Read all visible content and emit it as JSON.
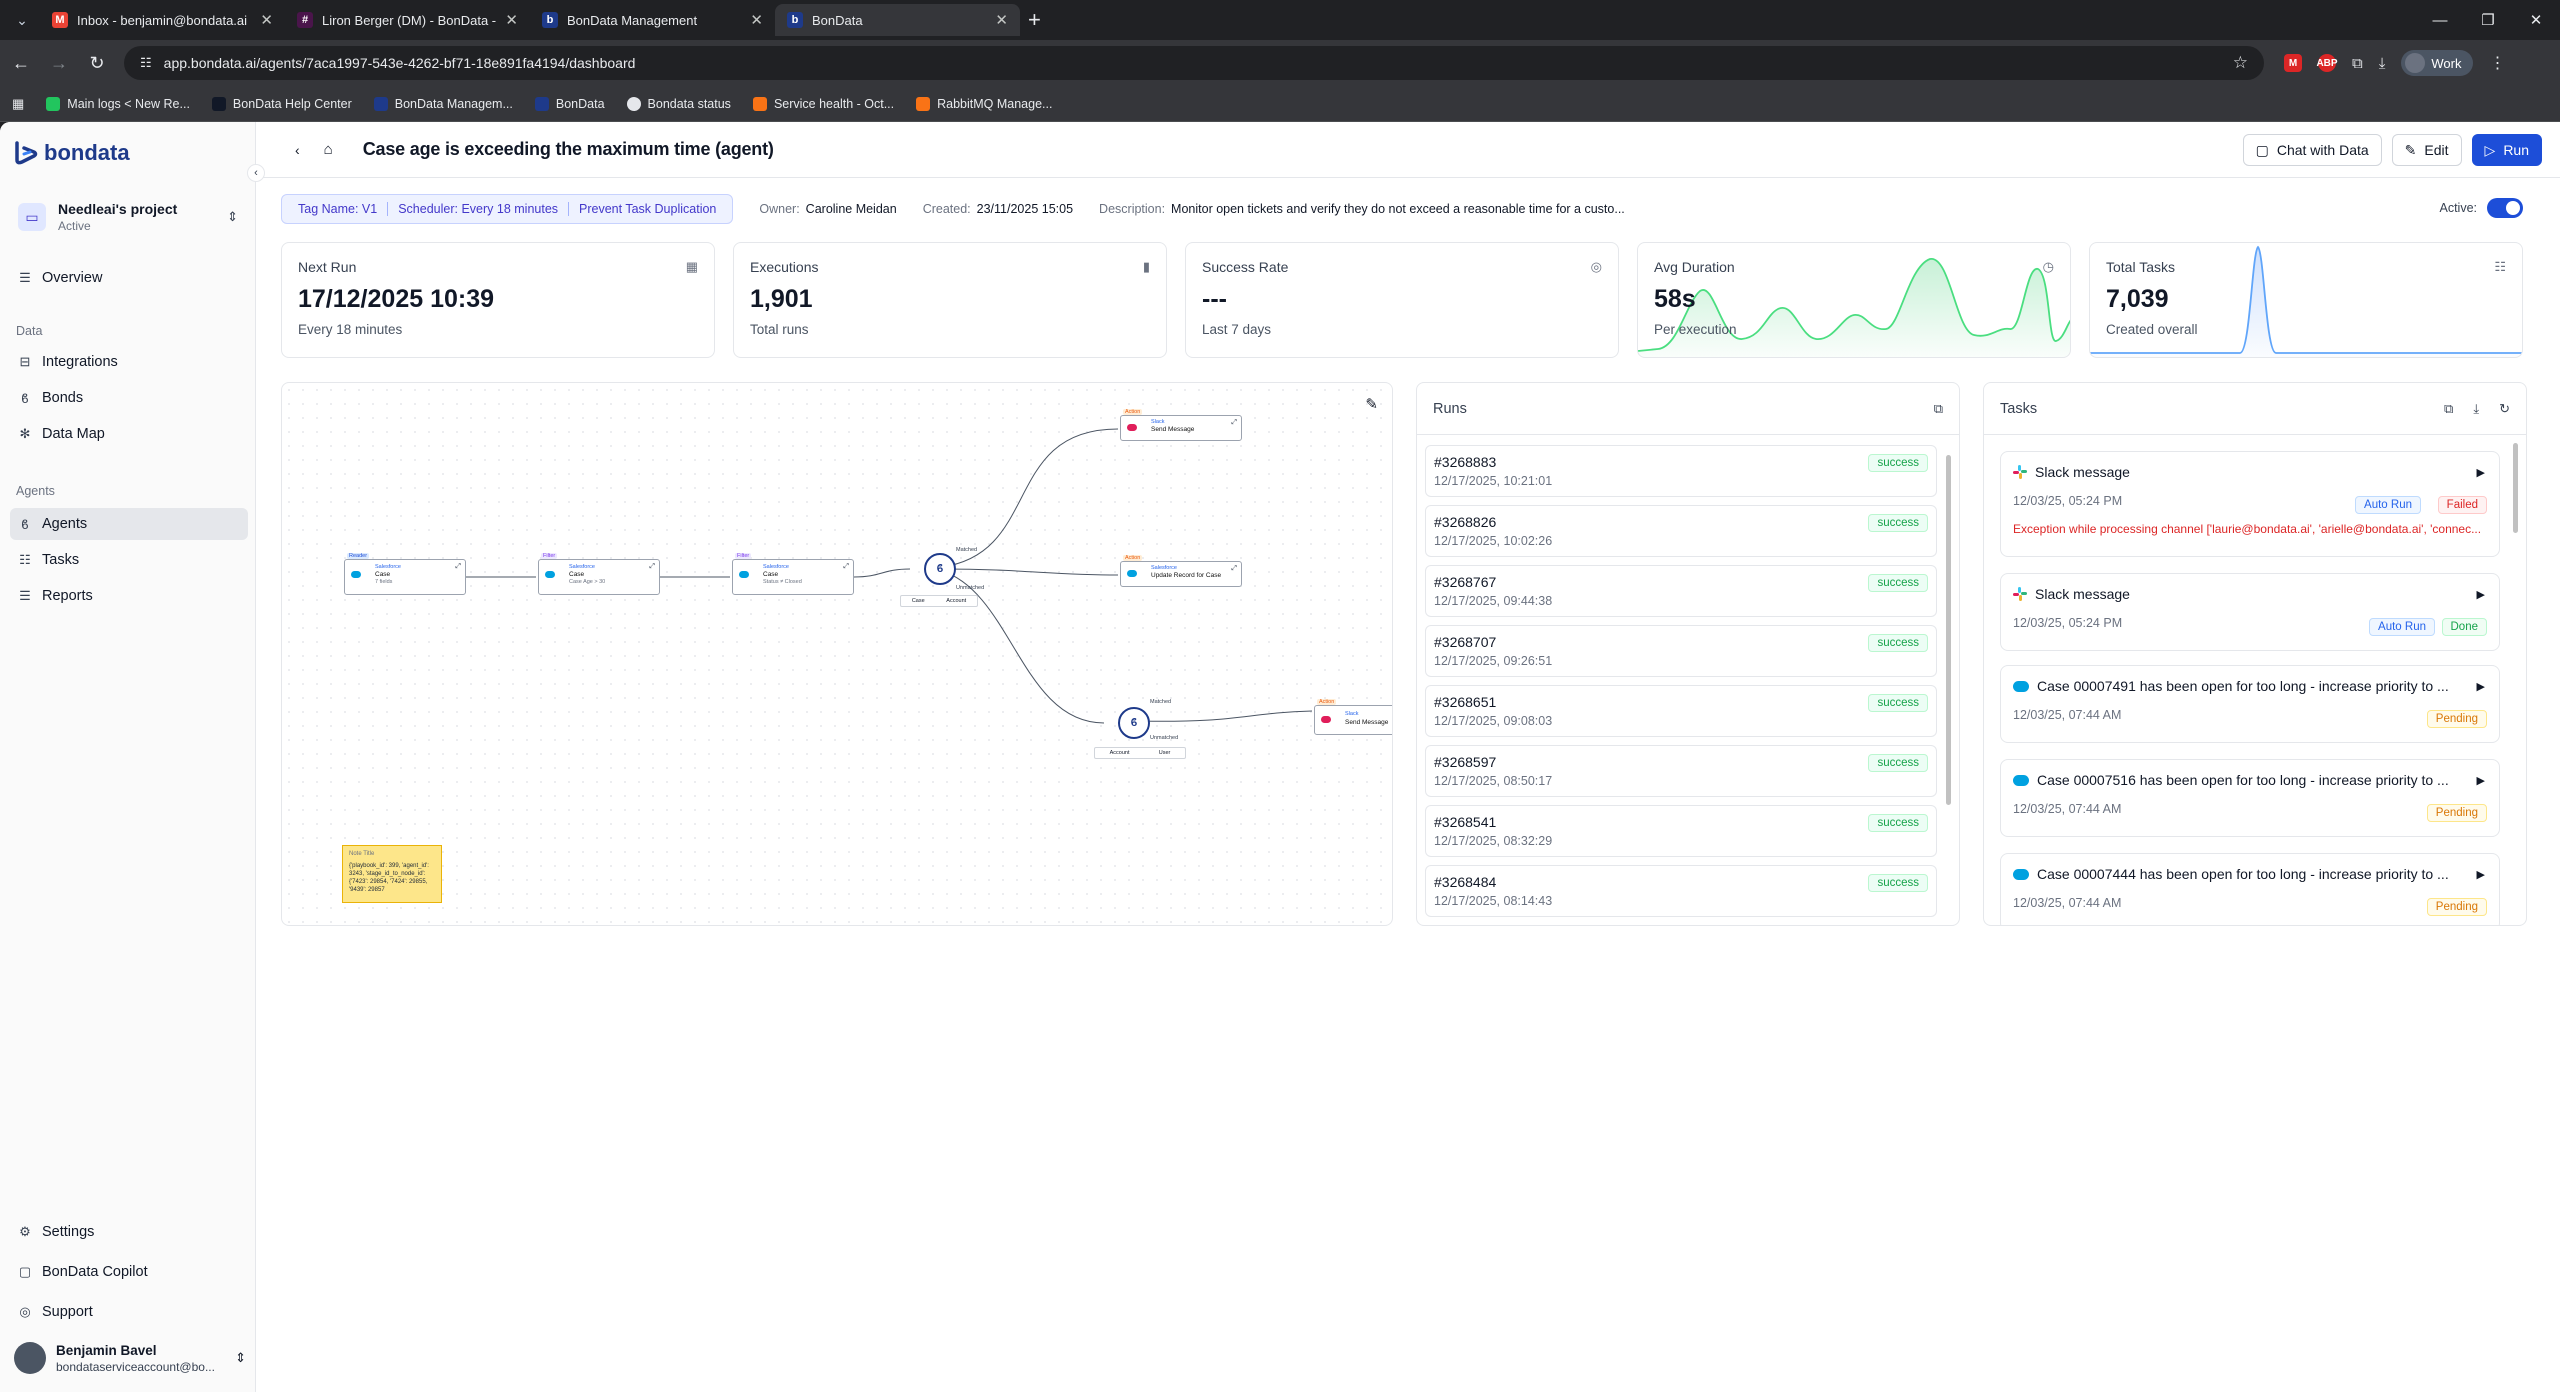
{
  "browser": {
    "tabs": [
      {
        "title": "Inbox - benjamin@bondata.ai -",
        "icon": "gmail-icon",
        "color": "#ea4335"
      },
      {
        "title": "Liron Berger (DM) - BonData -",
        "icon": "slack-icon",
        "color": "#e01e5a"
      },
      {
        "title": "BonData Management",
        "icon": "bondata-icon",
        "color": "#1e3a8a"
      },
      {
        "title": "BonData",
        "icon": "bondata-icon",
        "color": "#1e3a8a"
      }
    ],
    "url": "app.bondata.ai/agents/7aca1997-543e-4262-bf71-18e891fa4194/dashboard",
    "profile": "Work",
    "bookmarks": [
      {
        "label": "Main logs < New Re...",
        "color": "#22c55e"
      },
      {
        "label": "BonData Help Center",
        "color": "#1f2937"
      },
      {
        "label": "BonData Managem...",
        "color": "#1e3a8a"
      },
      {
        "label": "BonData",
        "color": "#1e3a8a"
      },
      {
        "label": "Bondata status",
        "color": "#e5e7eb"
      },
      {
        "label": "Service health - Oct...",
        "color": "#f97316"
      },
      {
        "label": "RabbitMQ Manage...",
        "color": "#f97316"
      }
    ]
  },
  "sidebar": {
    "brand": "bondata",
    "project": {
      "name": "Needleai's project",
      "status": "Active"
    },
    "overview": "Overview",
    "section_data": "Data",
    "data_items": [
      "Integrations",
      "Bonds",
      "Data Map"
    ],
    "section_agents": "Agents",
    "agent_items": [
      "Agents",
      "Tasks",
      "Reports"
    ],
    "bottom_items": [
      "Settings",
      "BonData Copilot",
      "Support"
    ],
    "user": {
      "name": "Benjamin Bavel",
      "email": "bondataserviceaccount@bo..."
    }
  },
  "header": {
    "title": "Case age is exceeding the maximum time (agent)",
    "chat_label": "Chat with Data",
    "edit_label": "Edit",
    "run_label": "Run"
  },
  "meta": {
    "tags": [
      "Tag Name: V1",
      "Scheduler: Every 18 minutes",
      "Prevent Task Duplication"
    ],
    "owner_label": "Owner:",
    "owner": "Caroline Meidan",
    "created_label": "Created:",
    "created": "23/11/2025 15:05",
    "desc_label": "Description:",
    "description": "Monitor open tickets and verify they do not exceed a reasonable time for a custo...",
    "active_label": "Active:"
  },
  "stats": [
    {
      "label": "Next Run",
      "value": "17/12/2025 10:39",
      "sub": "Every 18 minutes",
      "icon": "calendar-icon"
    },
    {
      "label": "Executions",
      "value": "1,901",
      "sub": "Total runs",
      "icon": "bar-chart-icon"
    },
    {
      "label": "Success Rate",
      "value": "---",
      "sub": "Last 7 days",
      "icon": "check-circle-icon"
    },
    {
      "label": "Avg Duration",
      "value": "58s",
      "sub": "Per execution",
      "icon": "clock-icon"
    },
    {
      "label": "Total Tasks",
      "value": "7,039",
      "sub": "Created overall",
      "icon": "list-icon"
    }
  ],
  "flow": {
    "nodes": [
      {
        "tag": "Reader",
        "app": "Salesforce",
        "object": "Case",
        "detail": "7 fields"
      },
      {
        "tag": "Filter",
        "app": "Salesforce",
        "object": "Case",
        "detail": "Case Age > 30"
      },
      {
        "tag": "Filter",
        "app": "Salesforce",
        "object": "Case",
        "detail": "Status ≠ Closed"
      },
      {
        "tag": "Action",
        "app": "Slack",
        "object": "Send Message",
        "detail": ""
      },
      {
        "tag": "Action",
        "app": "Salesforce",
        "object": "Update Record for Case",
        "detail": ""
      },
      {
        "tag": "Action",
        "app": "Slack",
        "object": "Send Message",
        "detail": ""
      }
    ],
    "bond_labels": [
      "Matched",
      "Unmatched"
    ],
    "bond1_pills": [
      "Case",
      "Account"
    ],
    "bond2_pills": [
      "Account",
      "User"
    ],
    "note": {
      "title": "Note Title",
      "text": "{'playbook_id': 399, 'agent_id': 3243, 'stage_id_to_node_id': {'7423': 29854, '7424': 29855, '9439': 29857"
    }
  },
  "runs": {
    "title": "Runs",
    "items": [
      {
        "id": "#3268883",
        "time": "12/17/2025, 10:21:01",
        "status": "success"
      },
      {
        "id": "#3268826",
        "time": "12/17/2025, 10:02:26",
        "status": "success"
      },
      {
        "id": "#3268767",
        "time": "12/17/2025, 09:44:38",
        "status": "success"
      },
      {
        "id": "#3268707",
        "time": "12/17/2025, 09:26:51",
        "status": "success"
      },
      {
        "id": "#3268651",
        "time": "12/17/2025, 09:08:03",
        "status": "success"
      },
      {
        "id": "#3268597",
        "time": "12/17/2025, 08:50:17",
        "status": "success"
      },
      {
        "id": "#3268541",
        "time": "12/17/2025, 08:32:29",
        "status": "success"
      },
      {
        "id": "#3268484",
        "time": "12/17/2025, 08:14:43",
        "status": "success"
      }
    ]
  },
  "tasks": {
    "title": "Tasks",
    "items": [
      {
        "title": "Slack message",
        "date": "12/03/25, 05:24 PM",
        "badges": [
          "Auto Run",
          "Failed"
        ],
        "error": "Exception while processing channel ['laurie@bondata.ai', 'arielle@bondata.ai', 'connec...",
        "icon": "slack"
      },
      {
        "title": "Slack message",
        "date": "12/03/25, 05:24 PM",
        "badges": [
          "Auto Run",
          "Done"
        ],
        "icon": "slack"
      },
      {
        "title": "Case 00007491 has been open for too long - increase priority to ...",
        "date": "12/03/25, 07:44 AM",
        "badges": [
          "Pending"
        ],
        "icon": "salesforce"
      },
      {
        "title": "Case 00007516 has been open for too long - increase priority to ...",
        "date": "12/03/25, 07:44 AM",
        "badges": [
          "Pending"
        ],
        "icon": "salesforce"
      },
      {
        "title": "Case 00007444 has been open for too long - increase priority to ...",
        "date": "12/03/25, 07:44 AM",
        "badges": [
          "Pending"
        ],
        "icon": "salesforce"
      }
    ]
  }
}
